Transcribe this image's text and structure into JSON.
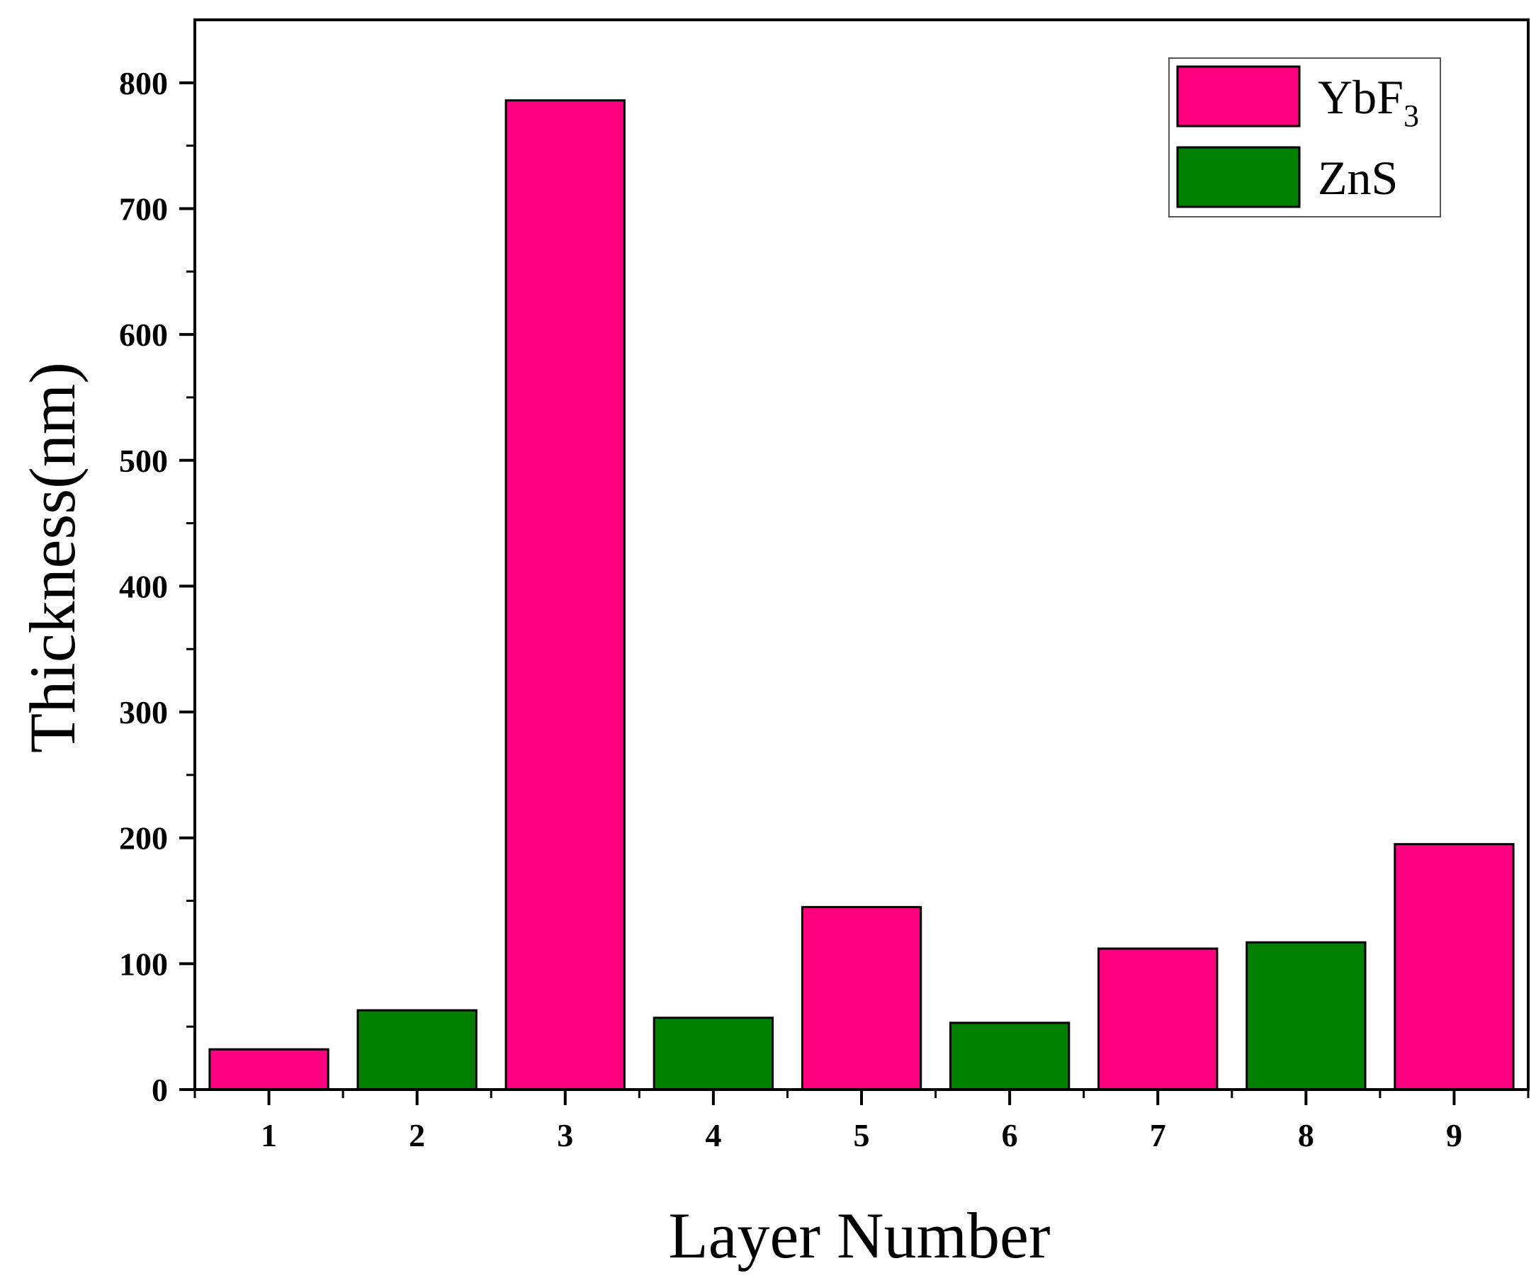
{
  "chart_data": {
    "type": "bar",
    "title": "",
    "xlabel": "Layer Number",
    "ylabel": "Thickness(nm)",
    "categories": [
      "1",
      "2",
      "3",
      "4",
      "5",
      "6",
      "7",
      "8",
      "9"
    ],
    "values": [
      32,
      63,
      786,
      57,
      145,
      53,
      112,
      117,
      195
    ],
    "materials": [
      "YbF3",
      "ZnS",
      "YbF3",
      "ZnS",
      "YbF3",
      "ZnS",
      "YbF3",
      "ZnS",
      "YbF3"
    ],
    "ylim": [
      0,
      850
    ],
    "yticks": [
      0,
      100,
      200,
      300,
      400,
      500,
      600,
      700,
      800
    ],
    "grid": false,
    "legend": {
      "placement": "top-right",
      "entries": [
        {
          "key": "YbF3",
          "label": "YbF",
          "subscript": "3",
          "color": "#ff0080"
        },
        {
          "key": "ZnS",
          "label": "ZnS",
          "subscript": "",
          "color": "#007f00"
        }
      ]
    },
    "colors": {
      "YbF3": "#ff0080",
      "ZnS": "#007f00"
    }
  }
}
